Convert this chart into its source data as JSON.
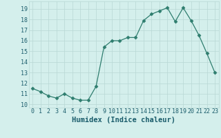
{
  "x": [
    0,
    1,
    2,
    3,
    4,
    5,
    6,
    7,
    8,
    9,
    10,
    11,
    12,
    13,
    14,
    15,
    16,
    17,
    18,
    19,
    20,
    21,
    22,
    23
  ],
  "y": [
    11.5,
    11.2,
    10.8,
    10.6,
    11.0,
    10.6,
    10.4,
    10.4,
    11.7,
    15.4,
    16.0,
    16.0,
    16.3,
    16.3,
    17.9,
    18.5,
    18.8,
    19.1,
    17.8,
    19.1,
    17.9,
    16.5,
    14.8,
    13.0
  ],
  "line_color": "#2e7d6e",
  "marker": "D",
  "marker_size": 2.5,
  "bg_color": "#d4efec",
  "grid_color": "#b8d8d4",
  "xlabel": "Humidex (Indice chaleur)",
  "xlabel_fontsize": 7.5,
  "xlabel_color": "#1a5c6b",
  "xlabel_fontweight": "bold",
  "yticks": [
    10,
    11,
    12,
    13,
    14,
    15,
    16,
    17,
    18,
    19
  ],
  "xtick_labels": [
    "0",
    "1",
    "2",
    "3",
    "4",
    "5",
    "6",
    "7",
    "8",
    "9",
    "10",
    "11",
    "12",
    "13",
    "14",
    "15",
    "16",
    "17",
    "18",
    "19",
    "20",
    "21",
    "22",
    "23"
  ],
  "ylim": [
    9.7,
    19.7
  ],
  "xlim": [
    -0.5,
    23.5
  ],
  "tick_fontsize": 6.0,
  "tick_color": "#1a5c6b"
}
